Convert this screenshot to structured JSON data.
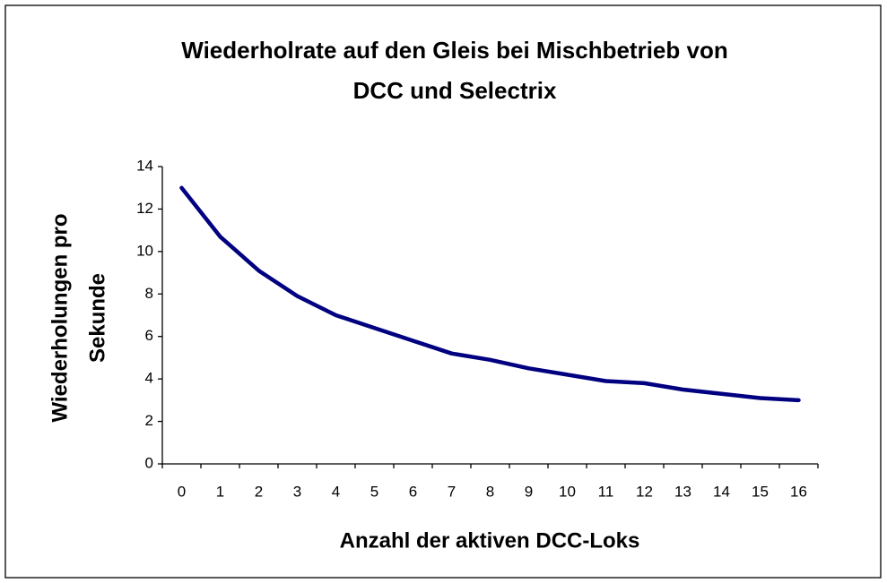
{
  "chart_data": {
    "type": "line",
    "title": [
      "Wiederholrate auf den Gleis bei Mischbetrieb von",
      "DCC und Selectrix"
    ],
    "xlabel": "Anzahl der aktiven DCC-Loks",
    "ylabel": [
      "Wiederholungen pro",
      "Sekunde"
    ],
    "categories": [
      "0",
      "1",
      "2",
      "3",
      "4",
      "5",
      "6",
      "7",
      "8",
      "9",
      "10",
      "11",
      "12",
      "13",
      "14",
      "15",
      "16"
    ],
    "series": [
      {
        "color": "#000080",
        "values": [
          13,
          10.7,
          9.1,
          7.9,
          7.0,
          6.4,
          5.8,
          5.2,
          4.9,
          4.5,
          4.2,
          3.9,
          3.8,
          3.5,
          3.3,
          3.1,
          3.0
        ]
      }
    ],
    "ylim": [
      0,
      14
    ],
    "yticks": [
      0,
      2,
      4,
      6,
      8,
      10,
      12,
      14
    ],
    "grid": false
  }
}
